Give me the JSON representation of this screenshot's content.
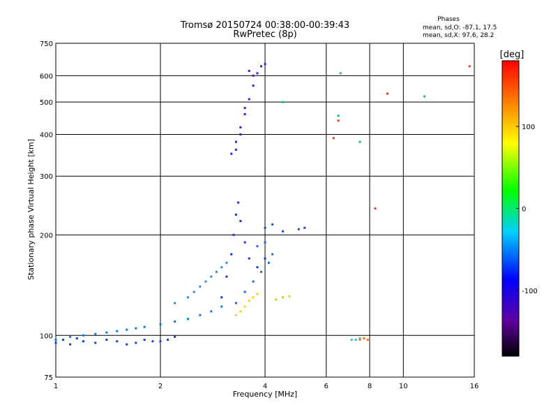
{
  "chart_data": {
    "type": "scatter",
    "title": "Tromsø 20150724 00:38:00-00:39:43",
    "subtitle": "RwPretec (8p)",
    "xlabel": "Frequency [MHz]",
    "ylabel": "Stationary phase Virtual Height [km]",
    "xscale": "log",
    "yscale": "log",
    "xlim": [
      1,
      16
    ],
    "ylim": [
      75,
      750
    ],
    "x_ticks": [
      {
        "value": 1,
        "label": "1"
      },
      {
        "value": 2,
        "label": "2"
      },
      {
        "value": 4,
        "label": "4"
      },
      {
        "value": 6,
        "label": "6"
      },
      {
        "value": 8,
        "label": "8"
      },
      {
        "value": 10,
        "label": "10"
      },
      {
        "value": 16,
        "label": "16"
      }
    ],
    "y_ticks": [
      {
        "value": 75,
        "label": "75"
      },
      {
        "value": 100,
        "label": "100"
      },
      {
        "value": 200,
        "label": "200"
      },
      {
        "value": 300,
        "label": "300"
      },
      {
        "value": 400,
        "label": "400"
      },
      {
        "value": 500,
        "label": "500"
      },
      {
        "value": 600,
        "label": "600"
      },
      {
        "value": 750,
        "label": "750"
      }
    ],
    "grid": true,
    "stats": {
      "heading": "Phases",
      "line_o": "mean, sd,O: -87.1, 17.5",
      "line_x": "mean, sd,X:  97.6, 28.2"
    },
    "colorbar": {
      "label": "[deg]",
      "range": [
        -180,
        180
      ],
      "ticks": [
        {
          "value": 100,
          "label": "100"
        },
        {
          "value": 0,
          "label": "0"
        },
        {
          "value": -100,
          "label": "-100"
        }
      ],
      "stops": [
        "#000000",
        "#6000a0",
        "#0000ff",
        "#00d0ff",
        "#00ff00",
        "#ffff00",
        "#ff8000",
        "#ff0000"
      ]
    },
    "series": [
      {
        "color": "#1838e0",
        "points": [
          [
            1.0,
            95
          ],
          [
            1.05,
            97
          ],
          [
            1.1,
            94
          ],
          [
            1.15,
            98
          ],
          [
            1.2,
            96
          ],
          [
            1.3,
            95
          ],
          [
            1.4,
            97
          ],
          [
            1.5,
            96
          ],
          [
            1.6,
            94
          ],
          [
            1.7,
            95
          ],
          [
            1.8,
            97
          ],
          [
            1.9,
            96
          ],
          [
            2.0,
            96
          ],
          [
            2.1,
            97
          ],
          [
            2.2,
            99
          ]
        ]
      },
      {
        "color": "#0a7ce0",
        "points": [
          [
            1.0,
            97
          ],
          [
            1.1,
            99
          ],
          [
            1.2,
            100
          ],
          [
            1.3,
            101
          ],
          [
            1.4,
            102
          ],
          [
            1.5,
            103
          ],
          [
            1.6,
            104
          ],
          [
            1.7,
            105
          ],
          [
            1.8,
            106
          ],
          [
            2.0,
            108
          ],
          [
            2.2,
            110
          ],
          [
            2.4,
            112
          ],
          [
            2.6,
            115
          ],
          [
            2.8,
            118
          ],
          [
            3.0,
            122
          ]
        ]
      },
      {
        "color": "#2a8ae8",
        "points": [
          [
            2.2,
            125
          ],
          [
            2.4,
            130
          ],
          [
            2.5,
            135
          ],
          [
            2.6,
            140
          ],
          [
            2.7,
            145
          ],
          [
            2.8,
            150
          ],
          [
            2.9,
            155
          ],
          [
            3.0,
            160
          ],
          [
            3.1,
            165
          ]
        ]
      },
      {
        "color": "#1830d8",
        "points": [
          [
            3.0,
            130
          ],
          [
            3.1,
            150
          ],
          [
            3.2,
            175
          ],
          [
            3.25,
            200
          ],
          [
            3.3,
            230
          ],
          [
            3.35,
            250
          ],
          [
            3.4,
            220
          ],
          [
            3.5,
            190
          ],
          [
            3.6,
            170
          ],
          [
            3.8,
            160
          ],
          [
            4.0,
            170
          ]
        ]
      },
      {
        "color": "#2060f0",
        "points": [
          [
            3.3,
            125
          ],
          [
            3.5,
            135
          ],
          [
            3.7,
            145
          ],
          [
            3.9,
            155
          ],
          [
            4.1,
            165
          ],
          [
            4.2,
            175
          ],
          [
            4.0,
            190
          ],
          [
            3.8,
            185
          ]
        ]
      },
      {
        "color": "#1848f0",
        "points": [
          [
            4.0,
            210
          ],
          [
            4.2,
            215
          ],
          [
            4.5,
            205
          ],
          [
            5.0,
            208
          ],
          [
            5.2,
            210
          ]
        ]
      },
      {
        "color": "#2424e0",
        "points": [
          [
            3.2,
            350
          ],
          [
            3.3,
            380
          ],
          [
            3.4,
            420
          ],
          [
            3.5,
            460
          ],
          [
            3.6,
            510
          ],
          [
            3.7,
            560
          ],
          [
            3.8,
            610
          ],
          [
            3.9,
            640
          ],
          [
            4.0,
            650
          ],
          [
            3.6,
            620
          ],
          [
            3.7,
            600
          ],
          [
            3.5,
            480
          ],
          [
            3.4,
            400
          ],
          [
            3.3,
            360
          ]
        ]
      },
      {
        "color": "#f0d010",
        "points": [
          [
            3.3,
            115
          ],
          [
            3.4,
            118
          ],
          [
            3.5,
            122
          ],
          [
            3.6,
            127
          ],
          [
            3.7,
            130
          ],
          [
            3.8,
            133
          ]
        ]
      },
      {
        "color": "#e0c020",
        "points": [
          [
            4.3,
            128
          ],
          [
            4.5,
            130
          ],
          [
            4.7,
            131
          ]
        ]
      },
      {
        "color": "#20b8e0",
        "points": [
          [
            7.1,
            97
          ],
          [
            7.3,
            97
          ],
          [
            7.5,
            98
          ]
        ]
      },
      {
        "color": "#ff7010",
        "points": [
          [
            7.5,
            97
          ],
          [
            7.7,
            98
          ],
          [
            7.9,
            97
          ]
        ]
      },
      {
        "color": "#e04020",
        "points": [
          [
            6.3,
            390
          ],
          [
            6.5,
            440
          ],
          [
            8.3,
            240
          ],
          [
            9.0,
            530
          ],
          [
            15.5,
            640
          ]
        ]
      },
      {
        "color": "#10c080",
        "points": [
          [
            6.5,
            455
          ],
          [
            6.6,
            610
          ],
          [
            7.5,
            380
          ],
          [
            11.5,
            520
          ],
          [
            4.5,
            500
          ]
        ]
      }
    ]
  }
}
